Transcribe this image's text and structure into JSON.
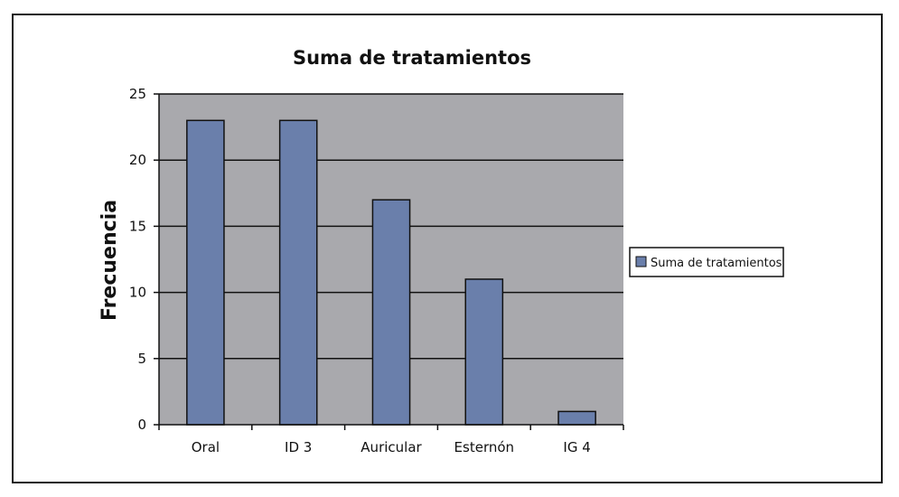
{
  "chart_data": {
    "type": "bar",
    "title": "Suma de tratamientos",
    "xlabel": "",
    "ylabel": "Frecuencia",
    "categories": [
      "Oral",
      "ID 3",
      "Auricular",
      "Esternón",
      "IG 4"
    ],
    "series": [
      {
        "name": "Suma de tratamientos",
        "values": [
          23,
          23,
          17,
          11,
          1
        ]
      }
    ],
    "ylim": [
      0,
      25
    ],
    "yticks": [
      "0",
      "5",
      "10",
      "15",
      "20",
      "25"
    ],
    "grid": true,
    "legend_position": "right",
    "colors": {
      "bar": "#6a7fab",
      "bar_stroke": "#111111",
      "plot_bg": "#a9a9ad",
      "grid": "#111111"
    }
  }
}
